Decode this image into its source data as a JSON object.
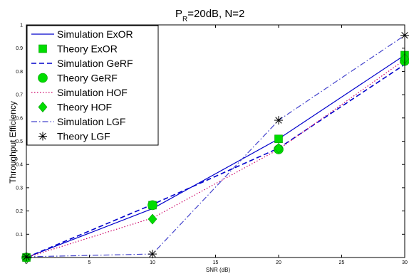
{
  "chart_data": {
    "type": "line",
    "title_prefix": "P",
    "title_sub": "R",
    "title_suffix": "=20dB, N=2",
    "xlabel": "SNR (dB)",
    "ylabel": "Throughput Efficiency",
    "xlim": [
      0,
      30
    ],
    "ylim": [
      0,
      1
    ],
    "xticks": [
      "0",
      "5",
      "10",
      "15",
      "20",
      "25",
      "30"
    ],
    "yticks": [
      "0.1",
      "0.2",
      "0.3",
      "0.4",
      "0.5",
      "0.6",
      "0.7",
      "0.8",
      "0.9",
      "1"
    ],
    "grid": false,
    "legend_position": "top-left",
    "x": [
      0,
      10,
      20,
      30
    ],
    "series": [
      {
        "name": "Simulation ExOR",
        "style": "solid",
        "color": "#0000cc",
        "values": [
          0.0,
          0.21,
          0.51,
          0.87
        ]
      },
      {
        "name": "Theory ExOR",
        "marker": "square",
        "color": "#00dd00",
        "values": [
          0.0,
          0.225,
          0.51,
          0.87
        ]
      },
      {
        "name": "Simulation GeRF",
        "style": "dashed",
        "color": "#0000cc",
        "values": [
          0.0,
          0.228,
          0.47,
          0.83
        ]
      },
      {
        "name": "Theory GeRF",
        "marker": "circle",
        "color": "#00dd00",
        "values": [
          0.0,
          0.225,
          0.465,
          0.845
        ]
      },
      {
        "name": "Simulation HOF",
        "style": "dotted",
        "color": "#cc0066",
        "values": [
          0.0,
          0.17,
          0.465,
          0.85
        ]
      },
      {
        "name": "Theory HOF",
        "marker": "diamond",
        "color": "#00dd00",
        "values": [
          0.0,
          0.165,
          0.47,
          0.855
        ]
      },
      {
        "name": "Simulation LGF",
        "style": "dashdot",
        "color": "#4444cc",
        "values": [
          0.003,
          0.015,
          0.59,
          0.955
        ]
      },
      {
        "name": "Theory LGF",
        "marker": "asterisk",
        "color": "#000000",
        "values": [
          0.003,
          0.015,
          0.59,
          0.955
        ]
      }
    ]
  }
}
